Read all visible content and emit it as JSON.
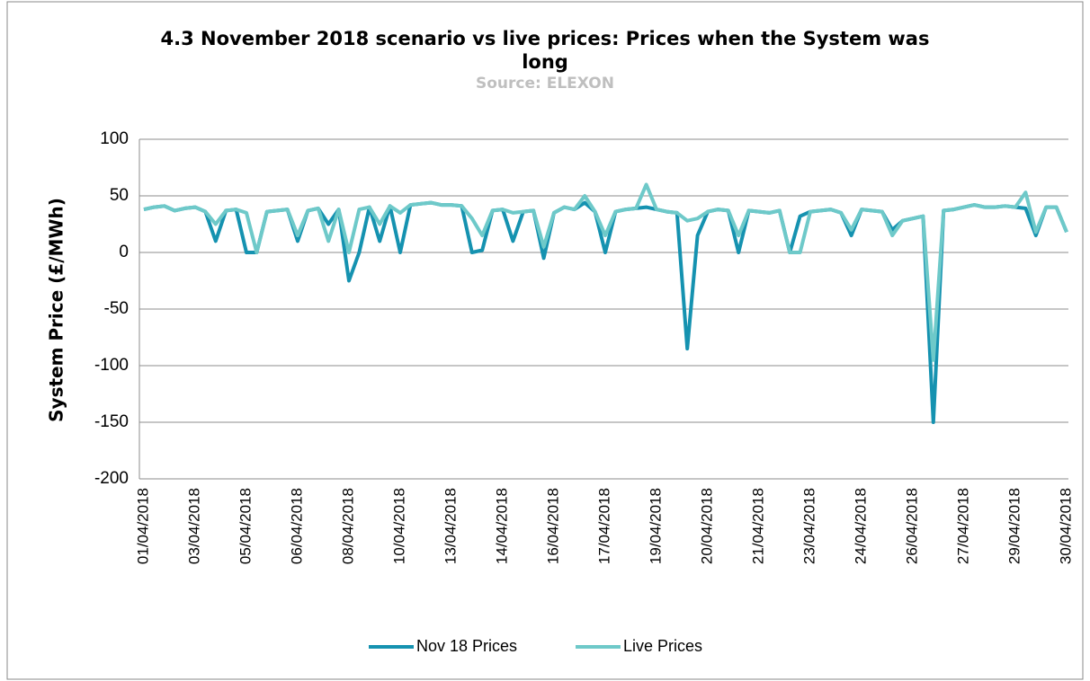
{
  "chart_data": {
    "type": "line",
    "title": "4.3 November 2018 scenario vs live prices: Prices when the System was long",
    "subtitle": "Source: ELEXON",
    "y_label": "System Price (£/MWh)",
    "categories": [
      "01/04/2018",
      null,
      null,
      null,
      null,
      "03/04/2018",
      null,
      null,
      null,
      null,
      "05/04/2018",
      null,
      null,
      null,
      null,
      "06/04/2018",
      null,
      null,
      null,
      null,
      "08/04/2018",
      null,
      null,
      null,
      null,
      "10/04/2018",
      null,
      null,
      null,
      null,
      "13/04/2018",
      null,
      null,
      null,
      null,
      "14/04/2018",
      null,
      null,
      null,
      null,
      "16/04/2018",
      null,
      null,
      null,
      null,
      "17/04/2018",
      null,
      null,
      null,
      null,
      "19/04/2018",
      null,
      null,
      null,
      null,
      "20/04/2018",
      null,
      null,
      null,
      null,
      "21/04/2018",
      null,
      null,
      null,
      null,
      "23/04/2018",
      null,
      null,
      null,
      null,
      "24/04/2018",
      null,
      null,
      null,
      null,
      "26/04/2018",
      null,
      null,
      null,
      null,
      "27/04/2018",
      null,
      null,
      null,
      null,
      "29/04/2018",
      null,
      null,
      null,
      null,
      "30/04/2018"
    ],
    "series": [
      {
        "name": "Nov 18 Prices",
        "color": "#1592b0",
        "values": [
          38,
          40,
          41,
          37,
          39,
          40,
          36,
          10,
          37,
          38,
          0,
          0,
          36,
          37,
          38,
          10,
          37,
          39,
          25,
          38,
          -25,
          0,
          40,
          10,
          41,
          0,
          42,
          43,
          44,
          42,
          42,
          41,
          0,
          2,
          37,
          38,
          10,
          36,
          37,
          -5,
          35,
          40,
          38,
          44,
          36,
          0,
          36,
          38,
          39,
          40,
          38,
          36,
          35,
          -85,
          15,
          36,
          38,
          37,
          0,
          37,
          36,
          35,
          37,
          0,
          32,
          36,
          37,
          38,
          35,
          15,
          38,
          37,
          36,
          20,
          28,
          30,
          32,
          -150,
          37,
          38,
          40,
          42,
          40,
          40,
          41,
          40,
          39,
          15,
          40,
          40,
          18
        ]
      },
      {
        "name": "Live Prices",
        "color": "#6ec9c9",
        "values": [
          38,
          40,
          41,
          37,
          39,
          40,
          36,
          25,
          37,
          38,
          35,
          0,
          36,
          37,
          38,
          15,
          37,
          39,
          10,
          38,
          0,
          38,
          40,
          25,
          41,
          35,
          42,
          43,
          44,
          42,
          42,
          41,
          30,
          15,
          37,
          38,
          35,
          36,
          37,
          5,
          35,
          40,
          38,
          50,
          36,
          15,
          36,
          38,
          39,
          60,
          38,
          36,
          35,
          28,
          30,
          36,
          38,
          37,
          15,
          37,
          36,
          35,
          37,
          0,
          0,
          36,
          37,
          38,
          35,
          20,
          38,
          37,
          36,
          15,
          28,
          30,
          32,
          -95,
          37,
          38,
          40,
          42,
          40,
          40,
          41,
          40,
          53,
          18,
          40,
          40,
          18
        ]
      }
    ],
    "ylim": [
      -200,
      100
    ],
    "yticks": [
      -200,
      -150,
      -100,
      -50,
      0,
      50,
      100
    ],
    "grid": true,
    "legend": "bottom"
  }
}
